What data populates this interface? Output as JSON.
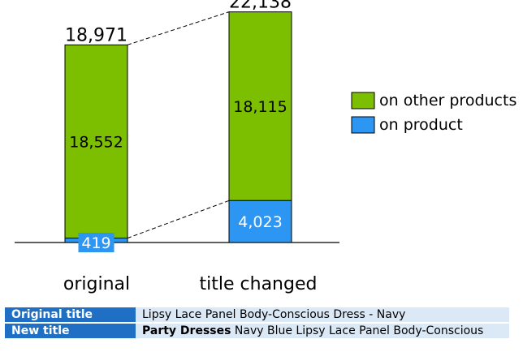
{
  "chart_data": {
    "type": "bar",
    "stacked": true,
    "categories": [
      "original",
      "title changed"
    ],
    "series": [
      {
        "name": "on product",
        "values": [
          419,
          4023
        ],
        "color": "#2d96f3"
      },
      {
        "name": "on other products",
        "values": [
          18552,
          18115
        ],
        "color": "#7cbf00"
      }
    ],
    "totals": [
      "18,971",
      "22,138"
    ],
    "segment_labels": {
      "on product": [
        "419",
        "4,023"
      ],
      "on other products": [
        "18,552",
        "18,115"
      ]
    },
    "legend_order": [
      "on other products",
      "on product"
    ],
    "legend_position": "right",
    "ylim": [
      0,
      22500
    ],
    "grid": false
  },
  "table": {
    "rows": [
      {
        "header": "Original title",
        "emphasis": "",
        "value": "Lipsy Lace Panel Body-Conscious Dress - Navy"
      },
      {
        "header": "New title",
        "emphasis": "Party Dresses",
        "value": " Navy Blue Lipsy Lace Panel Body-Conscious"
      }
    ]
  }
}
